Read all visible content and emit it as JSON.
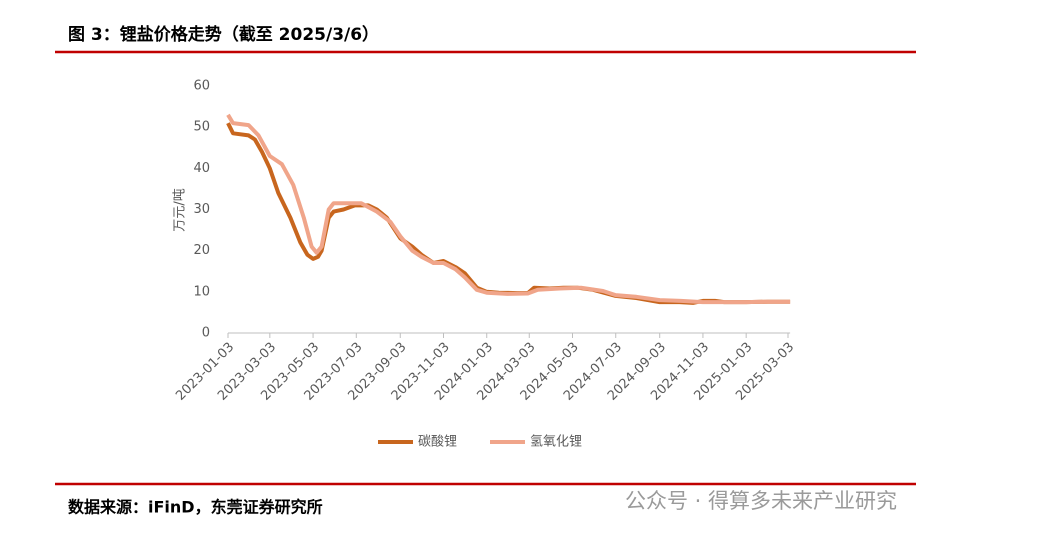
{
  "header": {
    "title": "图 3：锂盐价格走势（截至 2025/3/6）"
  },
  "chart_data": {
    "type": "line",
    "y_label": "万元/吨",
    "xlim": [
      "2023-01-03",
      "2025-03-06"
    ],
    "xticks": [
      "2023-01-03",
      "2023-03-03",
      "2023-05-03",
      "2023-07-03",
      "2023-09-03",
      "2023-11-03",
      "2024-01-03",
      "2024-03-03",
      "2024-05-03",
      "2024-07-03",
      "2024-09-03",
      "2024-11-03",
      "2025-01-03",
      "2025-03-03"
    ],
    "ylim": [
      0,
      60
    ],
    "yticks": [
      0,
      10,
      20,
      30,
      40,
      50,
      60
    ],
    "grid": false,
    "legend": "bottom",
    "series": [
      {
        "name": "碳酸锂",
        "color": "#c8661e",
        "x": [
          "2023-01-03",
          "2023-01-10",
          "2023-02-01",
          "2023-02-10",
          "2023-02-20",
          "2023-03-03",
          "2023-03-15",
          "2023-04-01",
          "2023-04-15",
          "2023-04-25",
          "2023-05-03",
          "2023-05-10",
          "2023-05-15",
          "2023-05-25",
          "2023-06-01",
          "2023-06-15",
          "2023-07-01",
          "2023-07-20",
          "2023-08-01",
          "2023-08-15",
          "2023-09-03",
          "2023-09-20",
          "2023-10-03",
          "2023-10-20",
          "2023-11-03",
          "2023-11-20",
          "2023-12-03",
          "2023-12-20",
          "2024-01-03",
          "2024-01-20",
          "2024-02-15",
          "2024-03-01",
          "2024-03-10",
          "2024-04-01",
          "2024-04-20",
          "2024-05-10",
          "2024-06-01",
          "2024-07-03",
          "2024-08-01",
          "2024-09-03",
          "2024-10-01",
          "2024-10-20",
          "2024-11-03",
          "2024-11-20",
          "2024-12-03",
          "2025-01-03",
          "2025-02-03",
          "2025-03-06"
        ],
        "values": [
          51,
          48.5,
          48,
          47,
          44,
          40,
          34,
          28,
          22,
          19,
          18,
          18.5,
          20,
          28,
          29.5,
          30,
          31,
          31,
          30,
          28,
          23,
          21,
          19,
          17,
          17.5,
          16,
          14.5,
          11,
          10,
          9.8,
          9.7,
          9.7,
          11,
          10.8,
          11,
          11,
          10.5,
          9,
          8.5,
          7.5,
          7.5,
          7.3,
          7.8,
          7.8,
          7.5,
          7.5,
          7.6,
          7.6
        ]
      },
      {
        "name": "氢氧化锂",
        "color": "#f0a58a",
        "x": [
          "2023-01-03",
          "2023-01-10",
          "2023-02-01",
          "2023-02-15",
          "2023-03-03",
          "2023-03-20",
          "2023-04-05",
          "2023-04-20",
          "2023-05-01",
          "2023-05-08",
          "2023-05-15",
          "2023-05-25",
          "2023-06-01",
          "2023-06-20",
          "2023-07-10",
          "2023-08-01",
          "2023-08-20",
          "2023-09-03",
          "2023-09-20",
          "2023-10-03",
          "2023-10-20",
          "2023-11-03",
          "2023-11-20",
          "2023-12-03",
          "2023-12-20",
          "2024-01-03",
          "2024-02-01",
          "2024-03-01",
          "2024-03-15",
          "2024-04-15",
          "2024-05-15",
          "2024-06-15",
          "2024-07-03",
          "2024-08-01",
          "2024-09-03",
          "2024-10-03",
          "2024-11-03",
          "2024-12-03",
          "2025-01-03",
          "2025-02-03",
          "2025-03-06"
        ],
        "values": [
          53,
          51,
          50.5,
          48,
          43,
          41,
          36,
          28,
          21,
          19.5,
          21,
          30,
          31.5,
          31.5,
          31.5,
          29.5,
          27,
          23.5,
          20,
          18.5,
          17,
          17,
          15.5,
          13.5,
          10.5,
          9.8,
          9.5,
          9.6,
          10.5,
          10.8,
          11,
          10.2,
          9.2,
          8.8,
          8,
          7.8,
          7.5,
          7.5,
          7.5,
          7.6,
          7.6
        ]
      }
    ]
  },
  "footer": {
    "source": "数据来源：iFinD，东莞证券研究所",
    "watermark": "公众号 · 得算多未来产业研究"
  }
}
